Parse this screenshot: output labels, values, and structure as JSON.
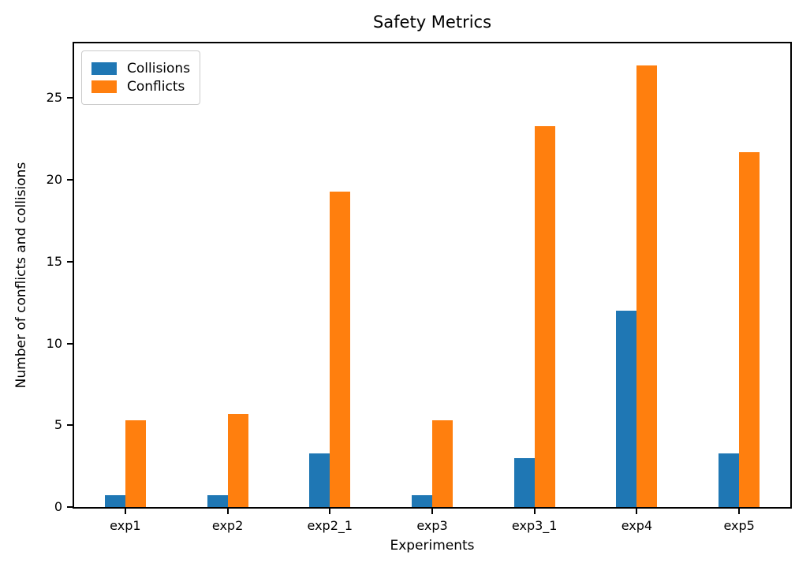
{
  "figure": {
    "title": "Safety Metrics",
    "xlabel": "Experiments",
    "ylabel": "Number of conflicts and collisions"
  },
  "legend": {
    "items": [
      {
        "label": "Collisions",
        "color": "#1f77b4"
      },
      {
        "label": "Conflicts",
        "color": "#ff7f0e"
      }
    ]
  },
  "chart_data": {
    "type": "bar",
    "title": "Safety Metrics",
    "xlabel": "Experiments",
    "ylabel": "Number of conflicts and collisions",
    "categories": [
      "exp1",
      "exp2",
      "exp2_1",
      "exp3",
      "exp3_1",
      "exp4",
      "exp5"
    ],
    "series": [
      {
        "name": "Collisions",
        "color": "#1f77b4",
        "values": [
          0.7,
          0.7,
          3.3,
          0.7,
          3.0,
          12.0,
          3.3
        ]
      },
      {
        "name": "Conflicts",
        "color": "#ff7f0e",
        "values": [
          5.3,
          5.7,
          19.3,
          5.3,
          23.3,
          27.0,
          21.7
        ]
      }
    ],
    "ylim": [
      0,
      28.35
    ],
    "yticks": [
      0,
      5,
      10,
      15,
      20,
      25
    ],
    "grid": false,
    "legend_position": "upper left",
    "bar_width_fraction": 0.2
  }
}
